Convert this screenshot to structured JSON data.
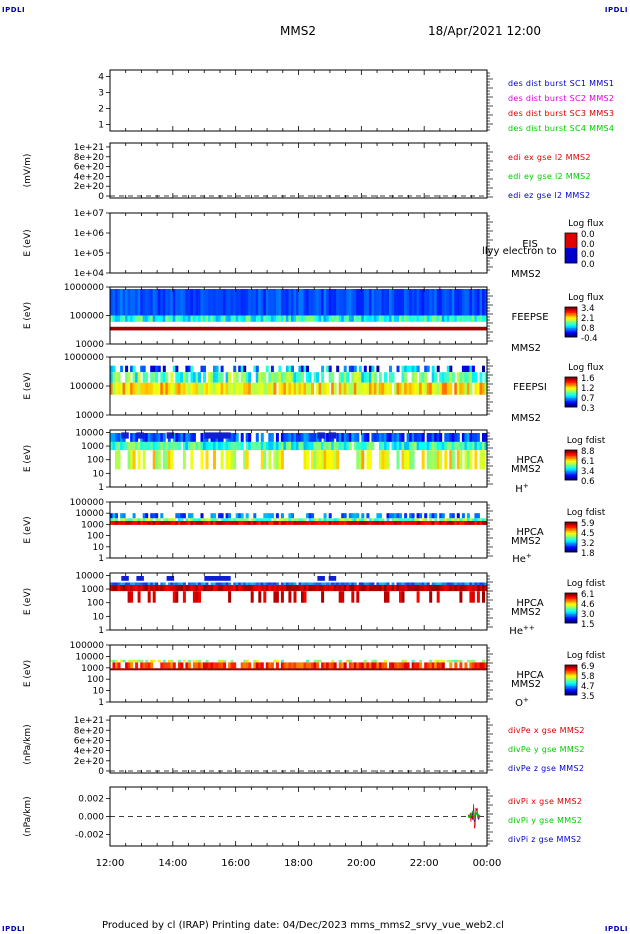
{
  "header": {
    "corner_tl": "IPDLI",
    "corner_tr": "IPDLI",
    "corner_bl": "IPDLI",
    "corner_br": "IPDLI",
    "title": "MMS2",
    "datetime": "18/Apr/2021 12:00"
  },
  "footer": {
    "text": "Produced by cl (IRAP)   Printing date: 04/Dec/2023   mms_mms2_srvy_vue_web2.cl"
  },
  "colors": {
    "red": "#dd0000",
    "green": "#00cc00",
    "blue": "#0000cc",
    "magenta": "#dd00dd"
  },
  "chart_data": {
    "type": "heatmap",
    "x_ticks": [
      "12:00",
      "14:00",
      "16:00",
      "18:00",
      "20:00",
      "22:00",
      "00:00"
    ],
    "panels": [
      {
        "kind": "line",
        "ylabel": "",
        "yticks": [
          "4",
          "3",
          "2",
          "1"
        ],
        "yvals": [
          4,
          3,
          2,
          1
        ],
        "ylim": [
          0.6,
          4.4
        ],
        "legend": [
          {
            "text": "des dist burst SC1 MMS1",
            "color": "#0000cc"
          },
          {
            "text": "des dist burst SC2 MMS2",
            "color": "#dd00dd"
          },
          {
            "text": "des dist burst SC3 MMS3",
            "color": "#dd0000"
          },
          {
            "text": "des dist burst SC4 MMS4",
            "color": "#00cc00"
          }
        ]
      },
      {
        "kind": "line",
        "ylabel": "(mV/m)",
        "yticks": [
          "1e+21",
          "8e+20",
          "6e+20",
          "4e+20",
          "2e+20",
          "0"
        ],
        "yvals": [
          1e+21,
          8e+20,
          6e+20,
          4e+20,
          2e+20,
          0
        ],
        "ylim": [
          -4e+19,
          1.08e+21
        ],
        "zero_line": true,
        "legend": [
          {
            "text": "edi ex gse l2 MMS2",
            "color": "#dd0000"
          },
          {
            "text": "edi ey gse l2 MMS2",
            "color": "#00cc00"
          },
          {
            "text": "edi ez gse l2 MMS2",
            "color": "#0000cc"
          }
        ]
      },
      {
        "kind": "spec",
        "ylabel": "E (eV)",
        "yticks": [
          "1e+07",
          "1e+06",
          "1e+05",
          "1e+04"
        ],
        "yvals": [
          10000000.0,
          1000000.0,
          100000.0,
          10000.0
        ],
        "log": true,
        "ylim": [
          10000.0,
          10000000.0
        ],
        "labels": [
          "EIS",
          "MMS2"
        ],
        "overlay": "llyy electron to",
        "cbar_title": "Log flux",
        "cbar_ticks": [
          "0.0",
          "0.0",
          "0.0",
          "0.0"
        ]
      },
      {
        "kind": "spec",
        "ylabel": "E (eV)",
        "yticks": [
          "1000000",
          "100000",
          "10000"
        ],
        "yvals": [
          1000000.0,
          100000.0,
          10000.0
        ],
        "log": true,
        "ylim": [
          10000.0,
          1000000.0
        ],
        "labels": [
          "FEEPSE",
          "MMS2"
        ],
        "cbar_title": "Log flux",
        "cbar_ticks": [
          "3.4",
          "2.1",
          "0.8",
          "-0.4"
        ]
      },
      {
        "kind": "spec",
        "ylabel": "E (eV)",
        "yticks": [
          "1000000",
          "100000",
          "10000"
        ],
        "yvals": [
          1000000.0,
          100000.0,
          10000.0
        ],
        "log": true,
        "ylim": [
          10000.0,
          1000000.0
        ],
        "labels": [
          "FEEPSI",
          "MMS2"
        ],
        "cbar_title": "Log flux",
        "cbar_ticks": [
          "1.6",
          "1.2",
          "0.7",
          "0.3"
        ]
      },
      {
        "kind": "spec",
        "ylabel": "E (eV)",
        "yticks": [
          "10000",
          "1000",
          "100",
          "10",
          "1"
        ],
        "yvals": [
          10000.0,
          1000.0,
          100.0,
          10,
          1
        ],
        "log": true,
        "ylim": [
          1,
          15000.0
        ],
        "labels": [
          "HPCA",
          "MMS2"
        ],
        "species": "H",
        "species_sup": "+",
        "cbar_title": "Log fdist",
        "cbar_ticks": [
          "8.8",
          "6.1",
          "3.4",
          "0.6"
        ]
      },
      {
        "kind": "spec",
        "ylabel": "E (eV)",
        "yticks": [
          "100000",
          "10000",
          "1000",
          "100",
          "10",
          "1"
        ],
        "yvals": [
          100000.0,
          10000.0,
          1000.0,
          100.0,
          10,
          1
        ],
        "log": true,
        "ylim": [
          1,
          100000.0
        ],
        "labels": [
          "HPCA",
          "MMS2"
        ],
        "species": "He",
        "species_sup": "+",
        "cbar_title": "Log fdist",
        "cbar_ticks": [
          "5.9",
          "4.5",
          "3.2",
          "1.8"
        ]
      },
      {
        "kind": "spec",
        "ylabel": "E (eV)",
        "yticks": [
          "10000",
          "1000",
          "100",
          "10",
          "1"
        ],
        "yvals": [
          10000.0,
          1000.0,
          100.0,
          10,
          1
        ],
        "log": true,
        "ylim": [
          1,
          15000.0
        ],
        "labels": [
          "HPCA",
          "MMS2"
        ],
        "species": "He",
        "species_sup": "++",
        "cbar_title": "Log fdist",
        "cbar_ticks": [
          "6.1",
          "4.6",
          "3.0",
          "1.5"
        ]
      },
      {
        "kind": "spec",
        "ylabel": "E (eV)",
        "yticks": [
          "100000",
          "10000",
          "1000",
          "100",
          "10",
          "1"
        ],
        "yvals": [
          100000.0,
          10000.0,
          1000.0,
          100.0,
          10,
          1
        ],
        "log": true,
        "ylim": [
          1,
          100000.0
        ],
        "labels": [
          "HPCA",
          "MMS2"
        ],
        "species": "O",
        "species_sup": "+",
        "cbar_title": "Log fdist",
        "cbar_ticks": [
          "6.9",
          "5.8",
          "4.7",
          "3.5"
        ]
      },
      {
        "kind": "line",
        "ylabel": "(nPa/km)",
        "yticks": [
          "1e+21",
          "8e+20",
          "6e+20",
          "4e+20",
          "2e+20",
          "0"
        ],
        "yvals": [
          1e+21,
          8e+20,
          6e+20,
          4e+20,
          2e+20,
          0
        ],
        "ylim": [
          -4e+19,
          1.08e+21
        ],
        "zero_line": true,
        "legend": [
          {
            "text": "divPe x gse MMS2",
            "color": "#dd0000"
          },
          {
            "text": "divPe y gse MMS2",
            "color": "#00cc00"
          },
          {
            "text": "divPe z gse MMS2",
            "color": "#0000cc"
          }
        ]
      },
      {
        "kind": "line",
        "ylabel": "(nPa/km)",
        "yticks": [
          "0.002",
          "0.000",
          "-0.002"
        ],
        "yvals": [
          0.002,
          0,
          -0.002
        ],
        "ylim": [
          -0.0033,
          0.0033
        ],
        "zero_line": true,
        "burst": [
          22.8,
          23.6
        ],
        "legend": [
          {
            "text": "divPi x gse MMS2",
            "color": "#dd0000"
          },
          {
            "text": "divPi y gse MMS2",
            "color": "#00cc00"
          },
          {
            "text": "divPi z gse MMS2",
            "color": "#0000cc"
          }
        ]
      }
    ]
  }
}
